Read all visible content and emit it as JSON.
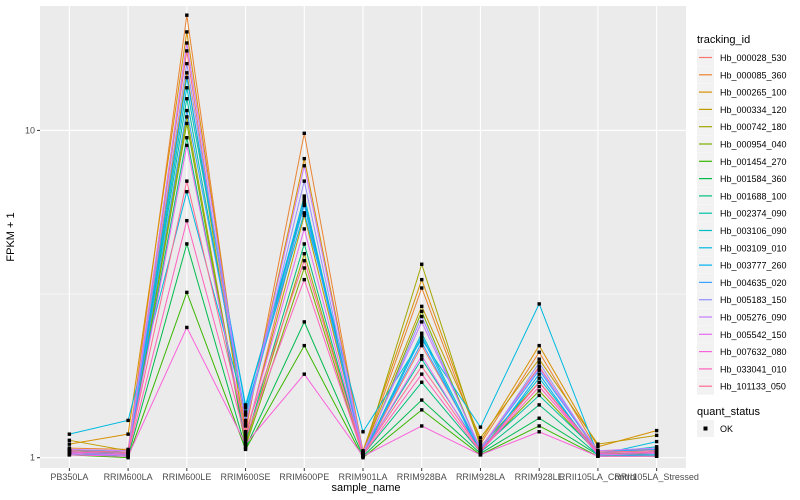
{
  "chart_data": {
    "type": "line",
    "xlabel": "sample_name",
    "ylabel": "FPKM + 1",
    "y_scale": "log10",
    "ylim": [
      0.93,
      24
    ],
    "y_ticks": [
      1,
      10
    ],
    "grid": true,
    "background": "#ebebeb",
    "legend_placement": "right",
    "categories": [
      "PB350LA",
      "RRIM600LA",
      "RRIM600LE",
      "RRIM600SE",
      "RRIM600PE",
      "RRIM901LA",
      "RRIM928BA",
      "RRIM928LA",
      "RRIM928LE",
      "RRII105LA_Control",
      "RRII105LA_Stressed"
    ],
    "series": [
      {
        "name": "Hb_000028_530",
        "color": "#F8766D",
        "values": [
          1.05,
          1.04,
          17.5,
          1.14,
          6.1,
          1.02,
          2.2,
          1.07,
          1.9,
          1.03,
          1.04
        ]
      },
      {
        "name": "Hb_000085_360",
        "color": "#EA8331",
        "values": [
          1.07,
          1.06,
          22.5,
          1.2,
          9.8,
          1.03,
          3.3,
          1.1,
          2.1,
          1.05,
          1.06
        ]
      },
      {
        "name": "Hb_000265_100",
        "color": "#D89000",
        "values": [
          1.1,
          1.18,
          20.0,
          1.25,
          8.2,
          1.05,
          3.5,
          1.12,
          2.2,
          1.08,
          1.21
        ]
      },
      {
        "name": "Hb_000334_120",
        "color": "#C09B00",
        "values": [
          1.13,
          1.05,
          15.0,
          1.16,
          5.5,
          1.04,
          2.9,
          1.15,
          2.0,
          1.1,
          1.17
        ]
      },
      {
        "name": "Hb_000742_180",
        "color": "#A3A500",
        "values": [
          1.06,
          1.03,
          11.0,
          1.1,
          4.2,
          1.02,
          3.9,
          1.08,
          1.7,
          1.04,
          1.05
        ]
      },
      {
        "name": "Hb_000954_040",
        "color": "#7CAE00",
        "values": [
          1.04,
          1.02,
          10.5,
          1.08,
          3.8,
          1.01,
          2.8,
          1.05,
          1.6,
          1.03,
          1.03
        ]
      },
      {
        "name": "Hb_001454_270",
        "color": "#39B600",
        "values": [
          1.02,
          1.0,
          3.2,
          1.06,
          2.2,
          1.0,
          1.4,
          1.02,
          1.25,
          1.01,
          1.01
        ]
      },
      {
        "name": "Hb_001584_360",
        "color": "#00BB4E",
        "values": [
          1.03,
          1.01,
          4.5,
          1.07,
          2.6,
          1.01,
          1.5,
          1.03,
          1.32,
          1.02,
          1.02
        ]
      },
      {
        "name": "Hb_001688_100",
        "color": "#00BF7D",
        "values": [
          1.05,
          1.03,
          9.5,
          1.12,
          4.5,
          1.02,
          1.7,
          1.04,
          1.45,
          1.02,
          1.03
        ]
      },
      {
        "name": "Hb_002374_090",
        "color": "#00C1A3",
        "values": [
          1.06,
          1.04,
          12.5,
          1.3,
          6.3,
          1.03,
          2.0,
          1.06,
          1.55,
          1.04,
          1.05
        ]
      },
      {
        "name": "Hb_003106_090",
        "color": "#00BFC4",
        "values": [
          1.04,
          1.02,
          13.5,
          1.45,
          6.0,
          1.02,
          2.4,
          1.05,
          1.75,
          1.03,
          1.08
        ]
      },
      {
        "name": "Hb_003109_010",
        "color": "#00BAE0",
        "values": [
          1.18,
          1.3,
          6.5,
          1.38,
          5.6,
          1.2,
          2.3,
          1.24,
          2.95,
          1.02,
          1.12
        ]
      },
      {
        "name": "Hb_003777_260",
        "color": "#00B0F6",
        "values": [
          1.03,
          1.01,
          14.5,
          1.42,
          6.2,
          1.01,
          2.35,
          1.03,
          1.8,
          1.01,
          1.02
        ]
      },
      {
        "name": "Hb_004635_020",
        "color": "#35A2FF",
        "values": [
          1.05,
          1.04,
          11.5,
          1.35,
          5.9,
          1.03,
          2.25,
          1.06,
          1.85,
          1.04,
          1.06
        ]
      },
      {
        "name": "Hb_005183_150",
        "color": "#9590FF",
        "values": [
          1.04,
          1.03,
          16.0,
          1.28,
          7.0,
          1.02,
          2.7,
          1.05,
          1.95,
          1.03,
          1.04
        ]
      },
      {
        "name": "Hb_005276_090",
        "color": "#C77CFF",
        "values": [
          1.06,
          1.05,
          18.5,
          1.26,
          7.8,
          1.04,
          2.6,
          1.07,
          1.88,
          1.05,
          1.07
        ]
      },
      {
        "name": "Hb_005542_150",
        "color": "#E76BF3",
        "values": [
          1.03,
          1.02,
          9.0,
          1.18,
          5.0,
          1.02,
          2.05,
          1.04,
          1.7,
          1.02,
          1.03
        ]
      },
      {
        "name": "Hb_007632_080",
        "color": "#FA62DB",
        "values": [
          1.02,
          1.01,
          2.5,
          1.1,
          1.8,
          1.01,
          1.25,
          1.02,
          1.2,
          1.01,
          1.01
        ]
      },
      {
        "name": "Hb_033041_010",
        "color": "#FF62BC",
        "values": [
          1.04,
          1.03,
          5.3,
          1.15,
          3.5,
          1.02,
          1.8,
          1.04,
          1.65,
          1.03,
          1.04
        ]
      },
      {
        "name": "Hb_101133_050",
        "color": "#FF6C91",
        "values": [
          1.05,
          1.04,
          7.0,
          1.2,
          4.0,
          1.03,
          1.9,
          1.05,
          1.7,
          1.04,
          1.05
        ]
      }
    ],
    "legends": {
      "color_title": "tracking_id",
      "shape_title": "quant_status",
      "shape_label": "OK"
    }
  }
}
